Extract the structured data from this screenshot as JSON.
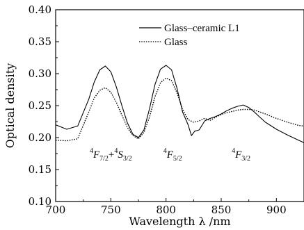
{
  "chart_data": {
    "type": "line",
    "xlabel": "Wavelength λ /nm",
    "ylabel": "Optical density",
    "xlim": [
      700,
      925
    ],
    "ylim": [
      0.1,
      0.4
    ],
    "xticks": [
      "700",
      "750",
      "800",
      "850",
      "900"
    ],
    "yticks": [
      "0.10",
      "0.15",
      "0.20",
      "0.25",
      "0.30",
      "0.35",
      "0.40"
    ],
    "legend_position": "top-right",
    "grid": false,
    "series": [
      {
        "name": "Glass–ceramic L1",
        "style": "solid",
        "color": "#000000",
        "x": [
          700,
          710,
          720,
          730,
          735,
          740,
          745,
          750,
          755,
          760,
          765,
          770,
          775,
          780,
          785,
          790,
          795,
          800,
          805,
          810,
          815,
          820,
          823,
          826,
          830,
          835,
          840,
          845,
          850,
          855,
          860,
          865,
          870,
          875,
          880,
          885,
          890,
          900,
          910,
          920,
          925
        ],
        "y": [
          0.22,
          0.213,
          0.218,
          0.26,
          0.287,
          0.306,
          0.312,
          0.303,
          0.279,
          0.25,
          0.223,
          0.205,
          0.2,
          0.212,
          0.245,
          0.283,
          0.307,
          0.313,
          0.306,
          0.277,
          0.24,
          0.22,
          0.203,
          0.21,
          0.212,
          0.226,
          0.23,
          0.233,
          0.237,
          0.242,
          0.246,
          0.249,
          0.251,
          0.247,
          0.24,
          0.232,
          0.224,
          0.213,
          0.204,
          0.196,
          0.192
        ]
      },
      {
        "name": "Glass",
        "style": "dotted",
        "color": "#000000",
        "x": [
          700,
          710,
          720,
          730,
          735,
          740,
          745,
          750,
          755,
          760,
          765,
          770,
          775,
          780,
          785,
          790,
          795,
          800,
          805,
          810,
          815,
          820,
          825,
          830,
          835,
          840,
          845,
          850,
          855,
          860,
          865,
          870,
          875,
          880,
          885,
          890,
          900,
          910,
          920,
          925
        ],
        "y": [
          0.196,
          0.195,
          0.198,
          0.24,
          0.262,
          0.274,
          0.278,
          0.271,
          0.255,
          0.235,
          0.216,
          0.203,
          0.198,
          0.208,
          0.232,
          0.264,
          0.286,
          0.293,
          0.289,
          0.27,
          0.244,
          0.228,
          0.224,
          0.226,
          0.23,
          0.227,
          0.232,
          0.236,
          0.239,
          0.241,
          0.243,
          0.244,
          0.244,
          0.243,
          0.24,
          0.237,
          0.23,
          0.224,
          0.219,
          0.218
        ]
      }
    ],
    "annotations": [
      {
        "id": "a1",
        "x": 750,
        "y": 0.19,
        "parts": [
          {
            "t": "4",
            "k": "sup"
          },
          {
            "t": "F",
            "k": "it"
          },
          {
            "t": "7/2",
            "k": "sub"
          },
          {
            "t": "+",
            "k": "normal"
          },
          {
            "t": "4",
            "k": "sup"
          },
          {
            "t": "S",
            "k": "it"
          },
          {
            "t": "3/2",
            "k": "sub"
          }
        ]
      },
      {
        "id": "a2",
        "x": 806,
        "y": 0.19,
        "parts": [
          {
            "t": "4",
            "k": "sup"
          },
          {
            "t": "F",
            "k": "it"
          },
          {
            "t": "5/2",
            "k": "sub"
          }
        ]
      },
      {
        "id": "a3",
        "x": 868,
        "y": 0.19,
        "parts": [
          {
            "t": "4",
            "k": "sup"
          },
          {
            "t": "F",
            "k": "it"
          },
          {
            "t": "3/2",
            "k": "sub"
          }
        ]
      }
    ]
  }
}
